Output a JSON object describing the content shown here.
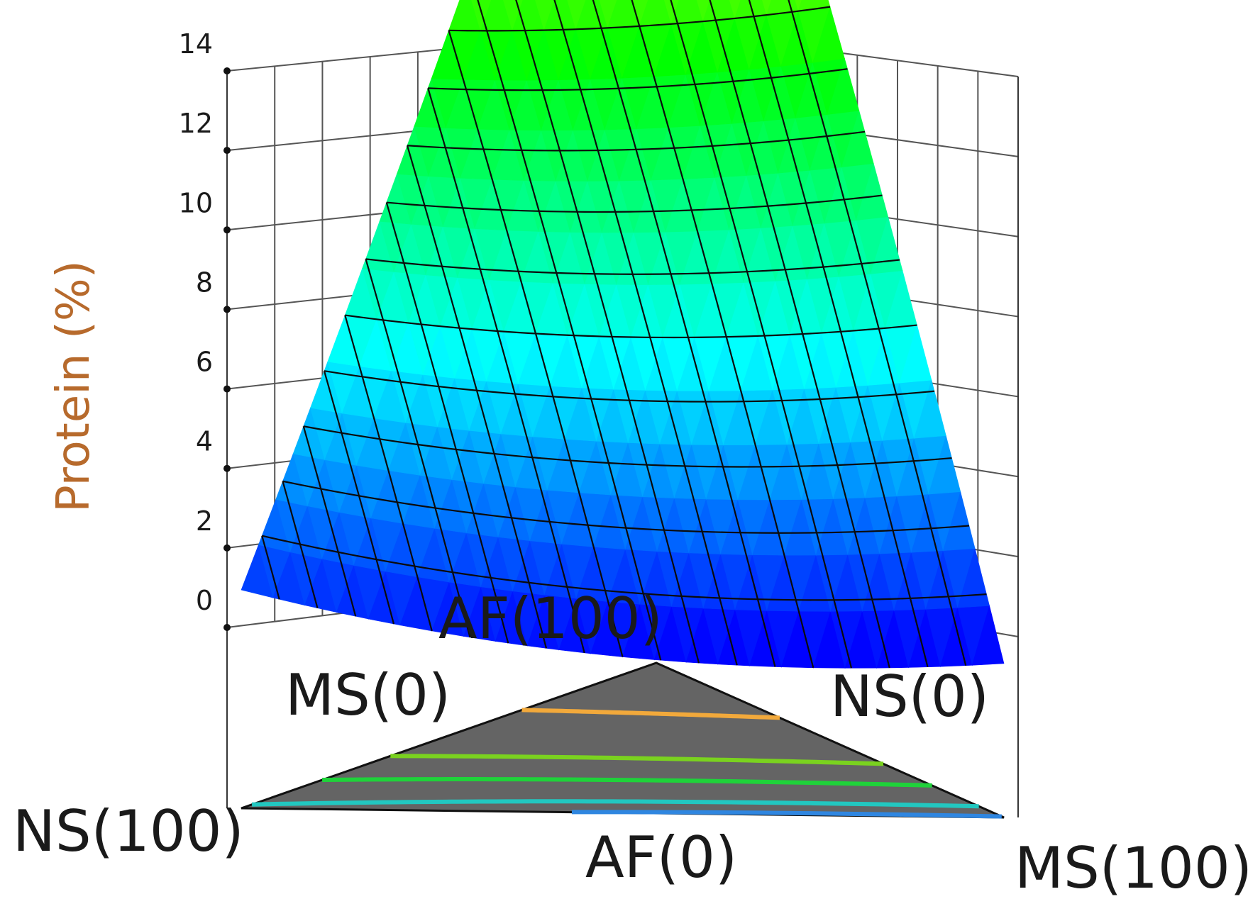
{
  "chart_data": {
    "type": "ternary-surface",
    "ylabel": "Protein (%)",
    "zlim": [
      0,
      14
    ],
    "z_ticks": [
      "0",
      "2",
      "4",
      "6",
      "8",
      "10",
      "12",
      "14"
    ],
    "components": [
      "NS",
      "MS",
      "AF"
    ],
    "vertices": {
      "NS": {
        "label": "NS(100)",
        "protein": 1.7
      },
      "MS": {
        "label": "MS(100)",
        "protein": 0.9
      },
      "AF": {
        "label": "AF(100)",
        "protein": 14.3
      }
    },
    "edge_labels": {
      "af_zero": "AF(0)",
      "ms_zero": "MS(0)",
      "ns_zero": "NS(0)"
    },
    "base_contours": [
      {
        "level": 1,
        "color": "#2f86e0"
      },
      {
        "level": 2,
        "color": "#22c7c0"
      },
      {
        "level": 4,
        "color": "#1fd23a"
      },
      {
        "level": 6,
        "color": "#7ad21f"
      },
      {
        "level": 10,
        "color": "#f2a93b"
      }
    ],
    "surface_colors": [
      "#0000ff",
      "#00ffff",
      "#00ff00",
      "#ffff00",
      "#ff0000"
    ]
  }
}
